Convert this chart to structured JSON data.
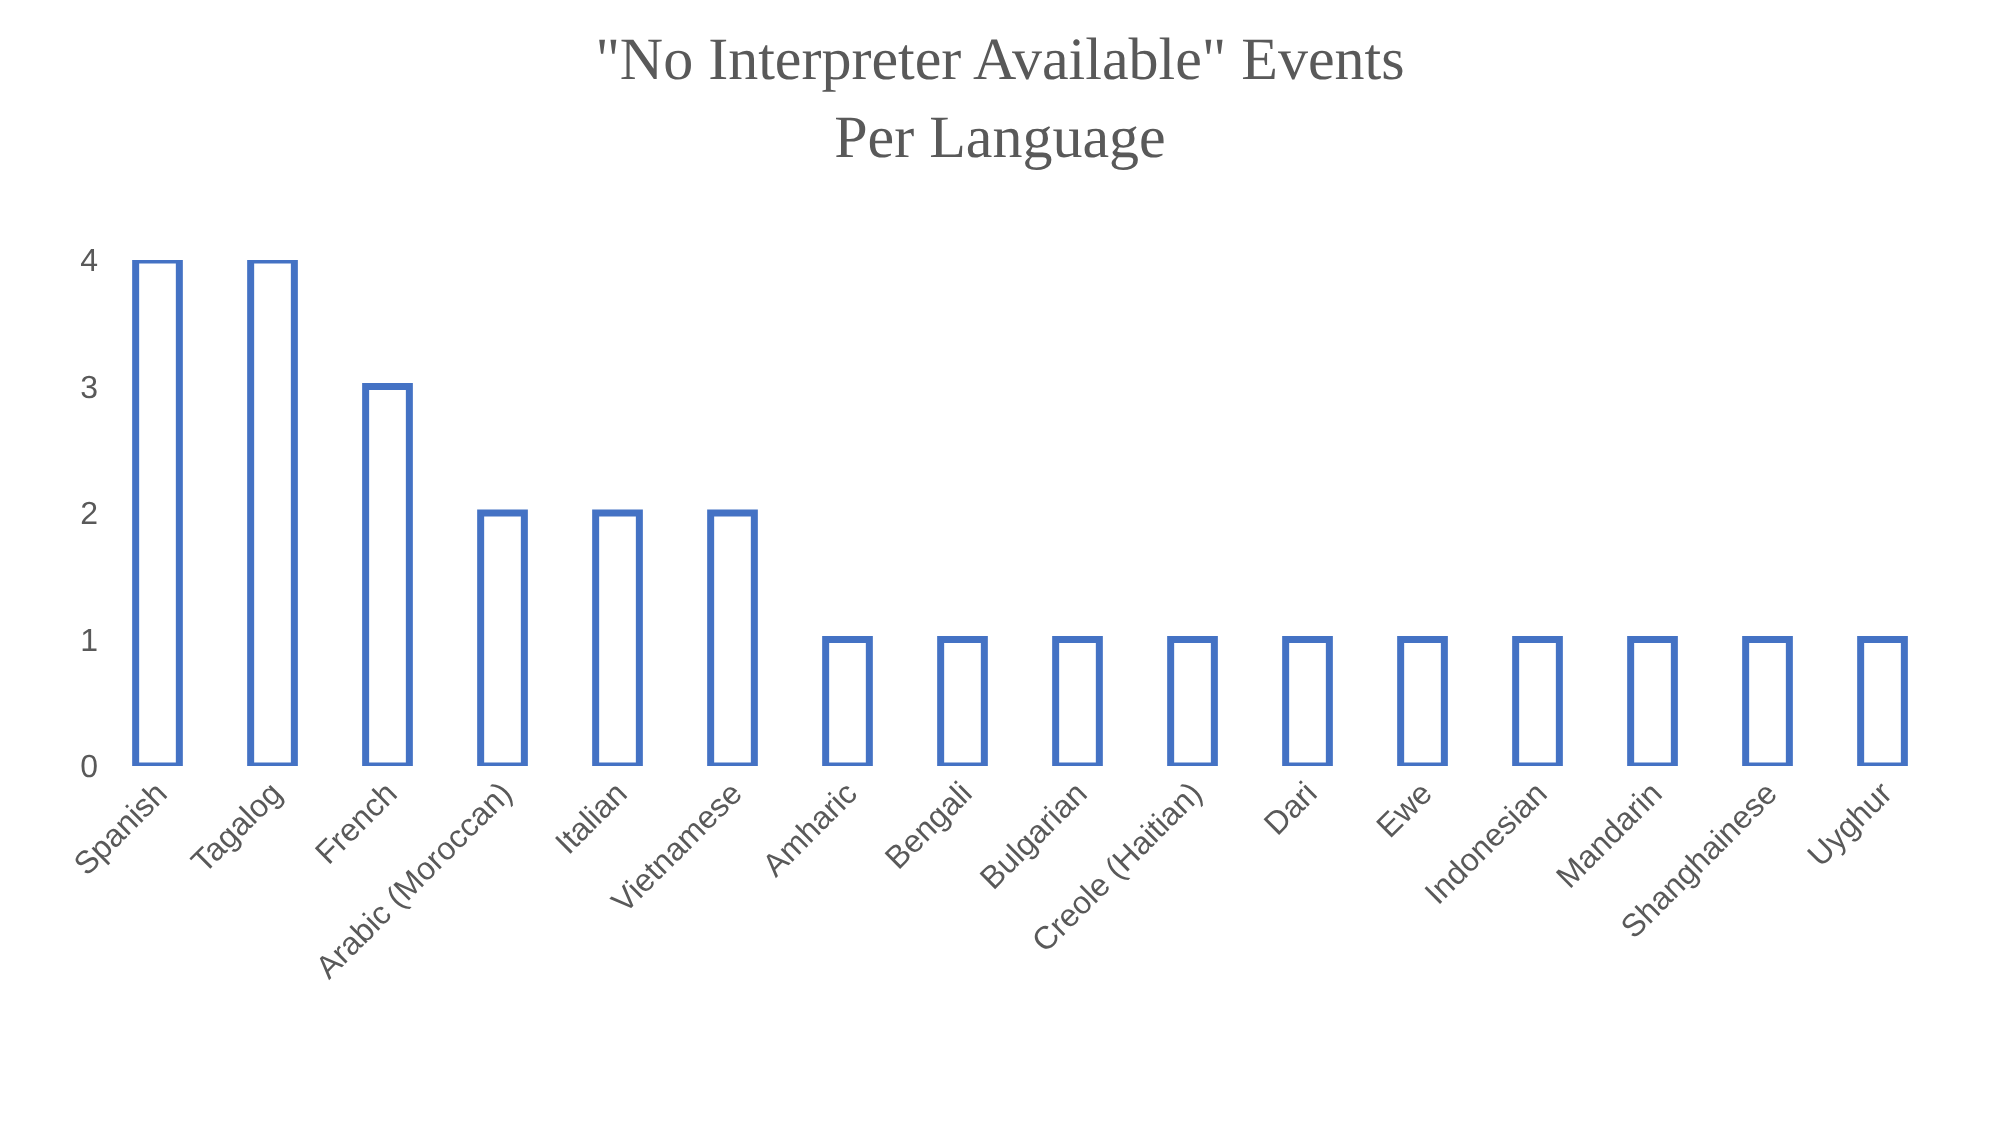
{
  "chart_data": {
    "type": "bar",
    "title": "\"No Interpreter Available\" Events\nPer Language",
    "categories": [
      "Spanish",
      "Tagalog",
      "French",
      "Arabic (Moroccan)",
      "Italian",
      "Vietnamese",
      "Amharic",
      "Bengali",
      "Bulgarian",
      "Creole (Haitian)",
      "Dari",
      "Ewe",
      "Indonesian",
      "Mandarin",
      "Shanghainese",
      "Uyghur"
    ],
    "values": [
      4,
      4,
      3,
      2,
      2,
      2,
      1,
      1,
      1,
      1,
      1,
      1,
      1,
      1,
      1,
      1
    ],
    "color": "#4472c4",
    "ylim": [
      0,
      4
    ],
    "yticks": [
      0,
      1,
      2,
      3,
      4
    ]
  }
}
